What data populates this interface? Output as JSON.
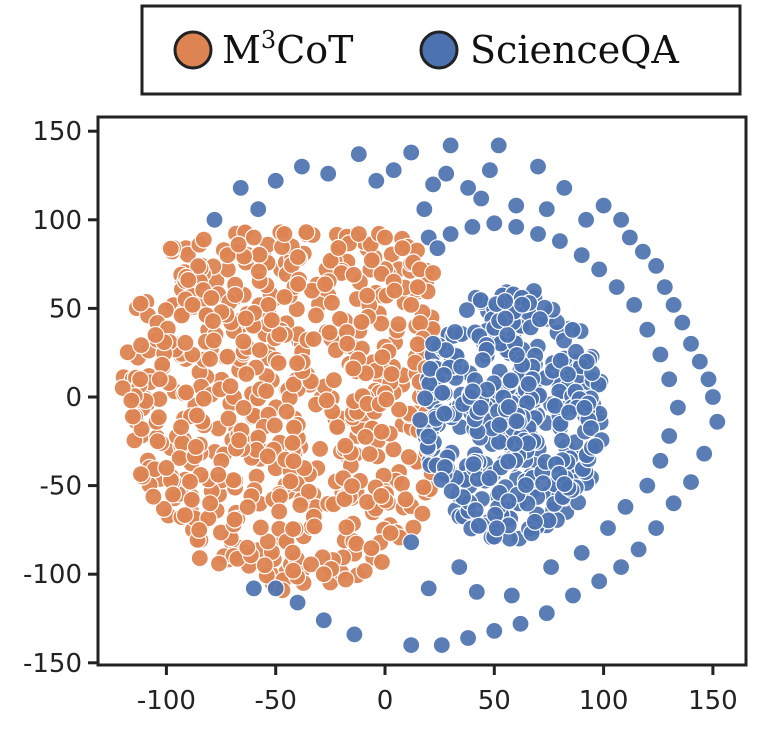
{
  "chart_data": {
    "type": "scatter",
    "title": "",
    "xlabel": "",
    "ylabel": "",
    "xlim": [
      -130,
      158
    ],
    "ylim": [
      -150,
      153
    ],
    "xticks": [
      "-100",
      "-50",
      "0",
      "50",
      "100",
      "150"
    ],
    "yticks": [
      "150",
      "100",
      "50",
      "0",
      "-50",
      "-100",
      "-150"
    ],
    "grid": false,
    "legend": {
      "placement": "top",
      "entries": [
        {
          "label_base": "M",
          "label_sup": "3",
          "label_rest": "CoT"
        },
        {
          "label_base": "ScienceQA",
          "label_sup": "",
          "label_rest": ""
        }
      ]
    },
    "colors": {
      "m3cot": "#DD8452",
      "scienceqa": "#4C72B0"
    },
    "series": [
      {
        "key": "m3cot",
        "cluster": {
          "cx": -42,
          "cy": 5,
          "rx": 78,
          "ry": 115,
          "x_min": -125,
          "x_max": 22,
          "y_max": 93,
          "approx_points": 640
        },
        "points": [
          [
            -120,
            5
          ],
          [
            -116,
            -2
          ],
          [
            -112,
            10
          ],
          [
            -105,
            35
          ],
          [
            -104,
            -25
          ],
          [
            -103,
            10
          ],
          [
            -100,
            -40
          ],
          [
            -97,
            -55
          ],
          [
            -93,
            46
          ],
          [
            -90,
            66
          ],
          [
            -88,
            52
          ],
          [
            -85,
            -75
          ],
          [
            -80,
            -60
          ],
          [
            -72,
            80
          ],
          [
            -67,
            86
          ],
          [
            -63,
            -85
          ],
          [
            -60,
            90
          ],
          [
            -55,
            -95
          ],
          [
            -46,
            92
          ],
          [
            -42,
            -98
          ],
          [
            -36,
            93
          ],
          [
            -28,
            -100
          ],
          [
            -18,
            -103
          ],
          [
            -12,
            92
          ],
          [
            0,
            90
          ],
          [
            8,
            84
          ],
          [
            12,
            52
          ],
          [
            15,
            62
          ],
          [
            16,
            72
          ],
          [
            22,
            70
          ]
        ]
      },
      {
        "key": "scienceqa",
        "cluster": {
          "cx": 58,
          "cy": -10,
          "rx": 42,
          "ry": 72,
          "approx_points": 420
        },
        "points": [
          [
            -78,
            100
          ],
          [
            -66,
            118
          ],
          [
            -58,
            106
          ],
          [
            -50,
            122
          ],
          [
            -38,
            130
          ],
          [
            -26,
            126
          ],
          [
            -12,
            137
          ],
          [
            -4,
            122
          ],
          [
            4,
            128
          ],
          [
            12,
            138
          ],
          [
            18,
            106
          ],
          [
            22,
            120
          ],
          [
            28,
            126
          ],
          [
            30,
            142
          ],
          [
            38,
            118
          ],
          [
            44,
            112
          ],
          [
            48,
            128
          ],
          [
            52,
            142
          ],
          [
            60,
            108
          ],
          [
            70,
            130
          ],
          [
            74,
            106
          ],
          [
            82,
            118
          ],
          [
            92,
            100
          ],
          [
            100,
            108
          ],
          [
            108,
            100
          ],
          [
            112,
            90
          ],
          [
            118,
            82
          ],
          [
            124,
            74
          ],
          [
            128,
            62
          ],
          [
            132,
            52
          ],
          [
            136,
            42
          ],
          [
            140,
            30
          ],
          [
            144,
            20
          ],
          [
            148,
            10
          ],
          [
            150,
            0
          ],
          [
            152,
            -14
          ],
          [
            146,
            -32
          ],
          [
            140,
            -48
          ],
          [
            132,
            -60
          ],
          [
            124,
            -74
          ],
          [
            116,
            -86
          ],
          [
            108,
            -96
          ],
          [
            98,
            -104
          ],
          [
            86,
            -112
          ],
          [
            74,
            -122
          ],
          [
            62,
            -128
          ],
          [
            50,
            -132
          ],
          [
            38,
            -136
          ],
          [
            26,
            -140
          ],
          [
            12,
            -140
          ],
          [
            -14,
            -134
          ],
          [
            -28,
            -126
          ],
          [
            -40,
            -116
          ],
          [
            -50,
            -108
          ],
          [
            -60,
            -108
          ],
          [
            20,
            -108
          ],
          [
            12,
            -82
          ],
          [
            34,
            -96
          ],
          [
            42,
            -110
          ],
          [
            58,
            -112
          ],
          [
            76,
            -96
          ],
          [
            90,
            -88
          ],
          [
            102,
            -74
          ],
          [
            110,
            -62
          ],
          [
            120,
            -50
          ],
          [
            126,
            -36
          ],
          [
            130,
            -22
          ],
          [
            134,
            -6
          ],
          [
            130,
            10
          ],
          [
            126,
            24
          ],
          [
            120,
            38
          ],
          [
            114,
            52
          ],
          [
            106,
            62
          ],
          [
            98,
            72
          ],
          [
            90,
            80
          ],
          [
            80,
            88
          ],
          [
            70,
            92
          ],
          [
            60,
            96
          ],
          [
            50,
            98
          ],
          [
            40,
            96
          ],
          [
            30,
            92
          ],
          [
            20,
            90
          ],
          [
            24,
            84
          ],
          [
            22,
            30
          ]
        ]
      }
    ]
  }
}
